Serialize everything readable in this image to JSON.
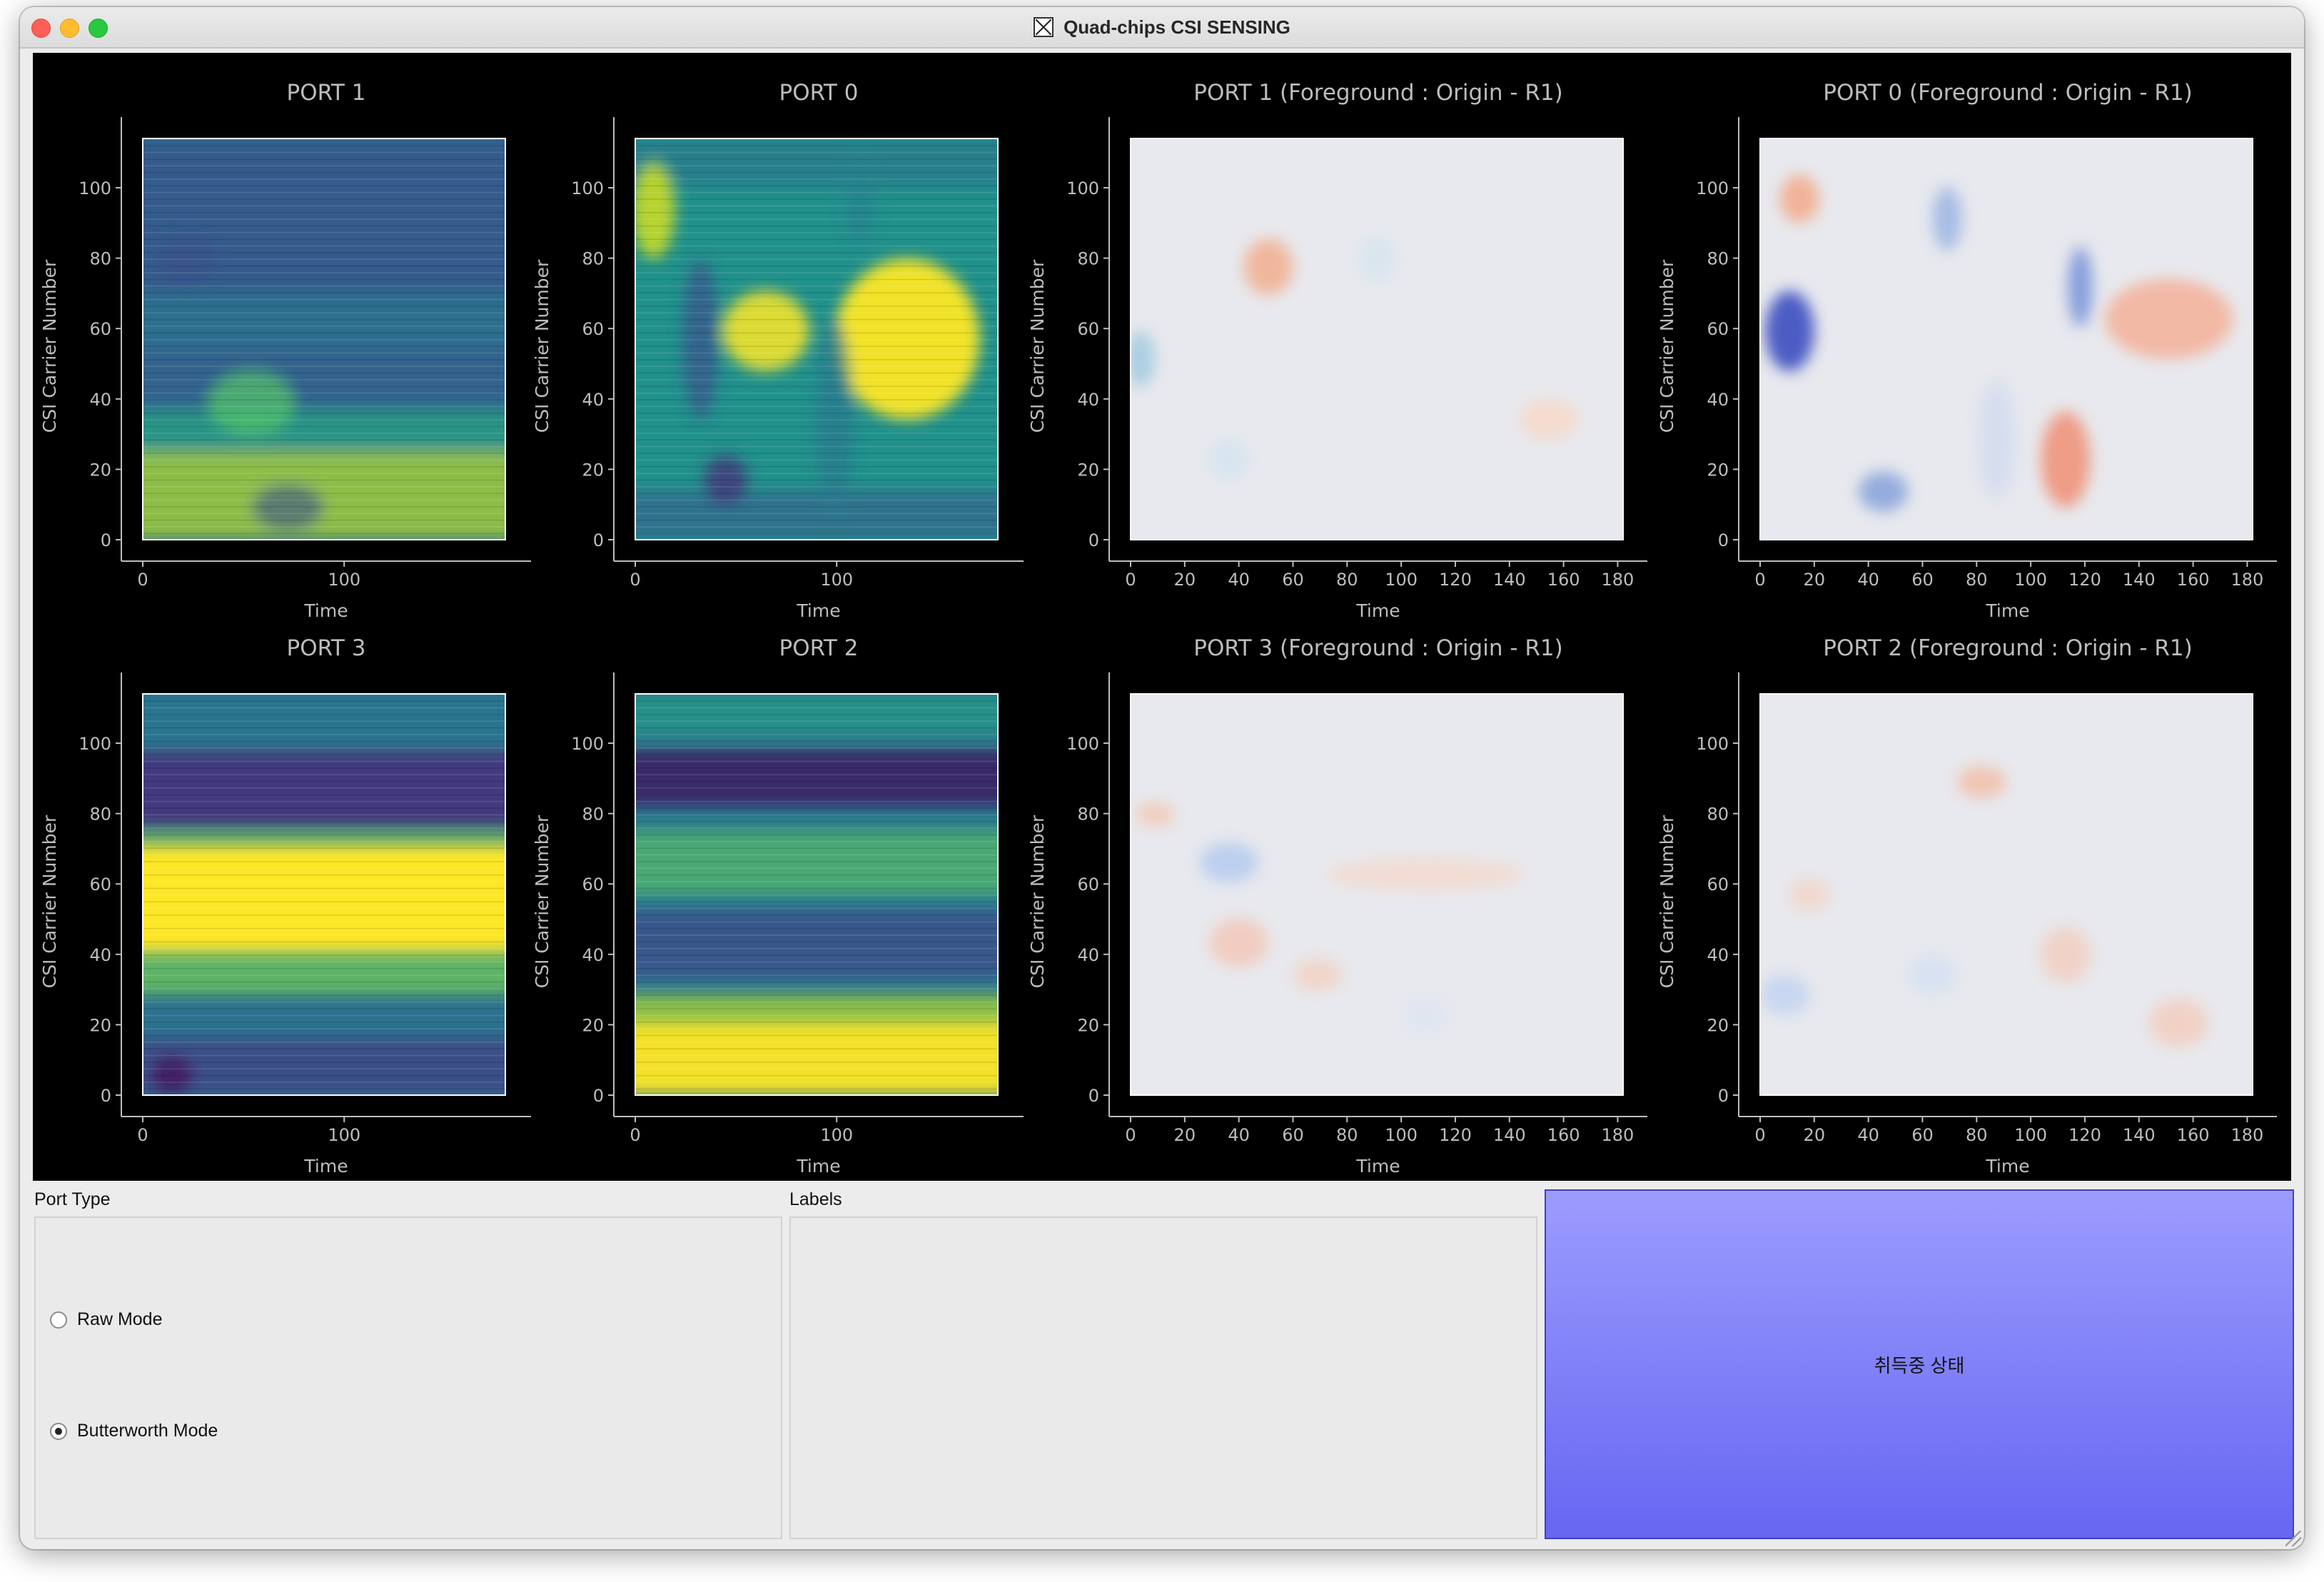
{
  "window": {
    "title": "Quad-chips CSI SENSING"
  },
  "plots": [
    {
      "title": "PORT 1",
      "kind": "viridis",
      "xticks": [
        "0",
        "100"
      ],
      "xlabel": "Time",
      "ylabel": "CSI Carrier Number",
      "yticks": [
        "0",
        "20",
        "40",
        "60",
        "80",
        "100"
      ]
    },
    {
      "title": "PORT 0",
      "kind": "viridis",
      "xticks": [
        "0",
        "100"
      ],
      "xlabel": "Time",
      "ylabel": "CSI Carrier Number",
      "yticks": [
        "0",
        "20",
        "40",
        "60",
        "80",
        "100"
      ]
    },
    {
      "title": "PORT 1 (Foreground : Origin - R1)",
      "kind": "diverging",
      "xticks": [
        "0",
        "20",
        "40",
        "60",
        "80",
        "100",
        "120",
        "140",
        "160",
        "180"
      ],
      "xlabel": "Time",
      "ylabel": "CSI Carrier Number",
      "yticks": [
        "0",
        "20",
        "40",
        "60",
        "80",
        "100"
      ]
    },
    {
      "title": "PORT 0 (Foreground : Origin - R1)",
      "kind": "diverging",
      "xticks": [
        "0",
        "20",
        "40",
        "60",
        "80",
        "100",
        "120",
        "140",
        "160",
        "180"
      ],
      "xlabel": "Time",
      "ylabel": "CSI Carrier Number",
      "yticks": [
        "0",
        "20",
        "40",
        "60",
        "80",
        "100"
      ]
    },
    {
      "title": "PORT 3",
      "kind": "viridis",
      "xticks": [
        "0",
        "100"
      ],
      "xlabel": "Time",
      "ylabel": "CSI Carrier Number",
      "yticks": [
        "0",
        "20",
        "40",
        "60",
        "80",
        "100"
      ]
    },
    {
      "title": "PORT 2",
      "kind": "viridis",
      "xticks": [
        "0",
        "100"
      ],
      "xlabel": "Time",
      "ylabel": "CSI Carrier Number",
      "yticks": [
        "0",
        "20",
        "40",
        "60",
        "80",
        "100"
      ]
    },
    {
      "title": "PORT 3 (Foreground : Origin - R1)",
      "kind": "diverging",
      "xticks": [
        "0",
        "20",
        "40",
        "60",
        "80",
        "100",
        "120",
        "140",
        "160",
        "180"
      ],
      "xlabel": "Time",
      "ylabel": "CSI Carrier Number",
      "yticks": [
        "0",
        "20",
        "40",
        "60",
        "80",
        "100"
      ]
    },
    {
      "title": "PORT 2 (Foreground : Origin - R1)",
      "kind": "diverging",
      "xticks": [
        "0",
        "20",
        "40",
        "60",
        "80",
        "100",
        "120",
        "140",
        "160",
        "180"
      ],
      "xlabel": "Time",
      "ylabel": "CSI Carrier Number",
      "yticks": [
        "0",
        "20",
        "40",
        "60",
        "80",
        "100"
      ]
    }
  ],
  "port_type": {
    "label": "Port Type",
    "options": [
      {
        "label": "Raw Mode",
        "checked": false
      },
      {
        "label": "Butterworth Mode",
        "checked": true
      }
    ]
  },
  "labels_group": {
    "label": "Labels"
  },
  "status_button": {
    "label": "취득중 상태"
  },
  "colors": {
    "plot_bg": "#000000",
    "text_gray": "#bdbdbd",
    "button_top": "#9c9cff",
    "button_bottom": "#6666f2"
  }
}
